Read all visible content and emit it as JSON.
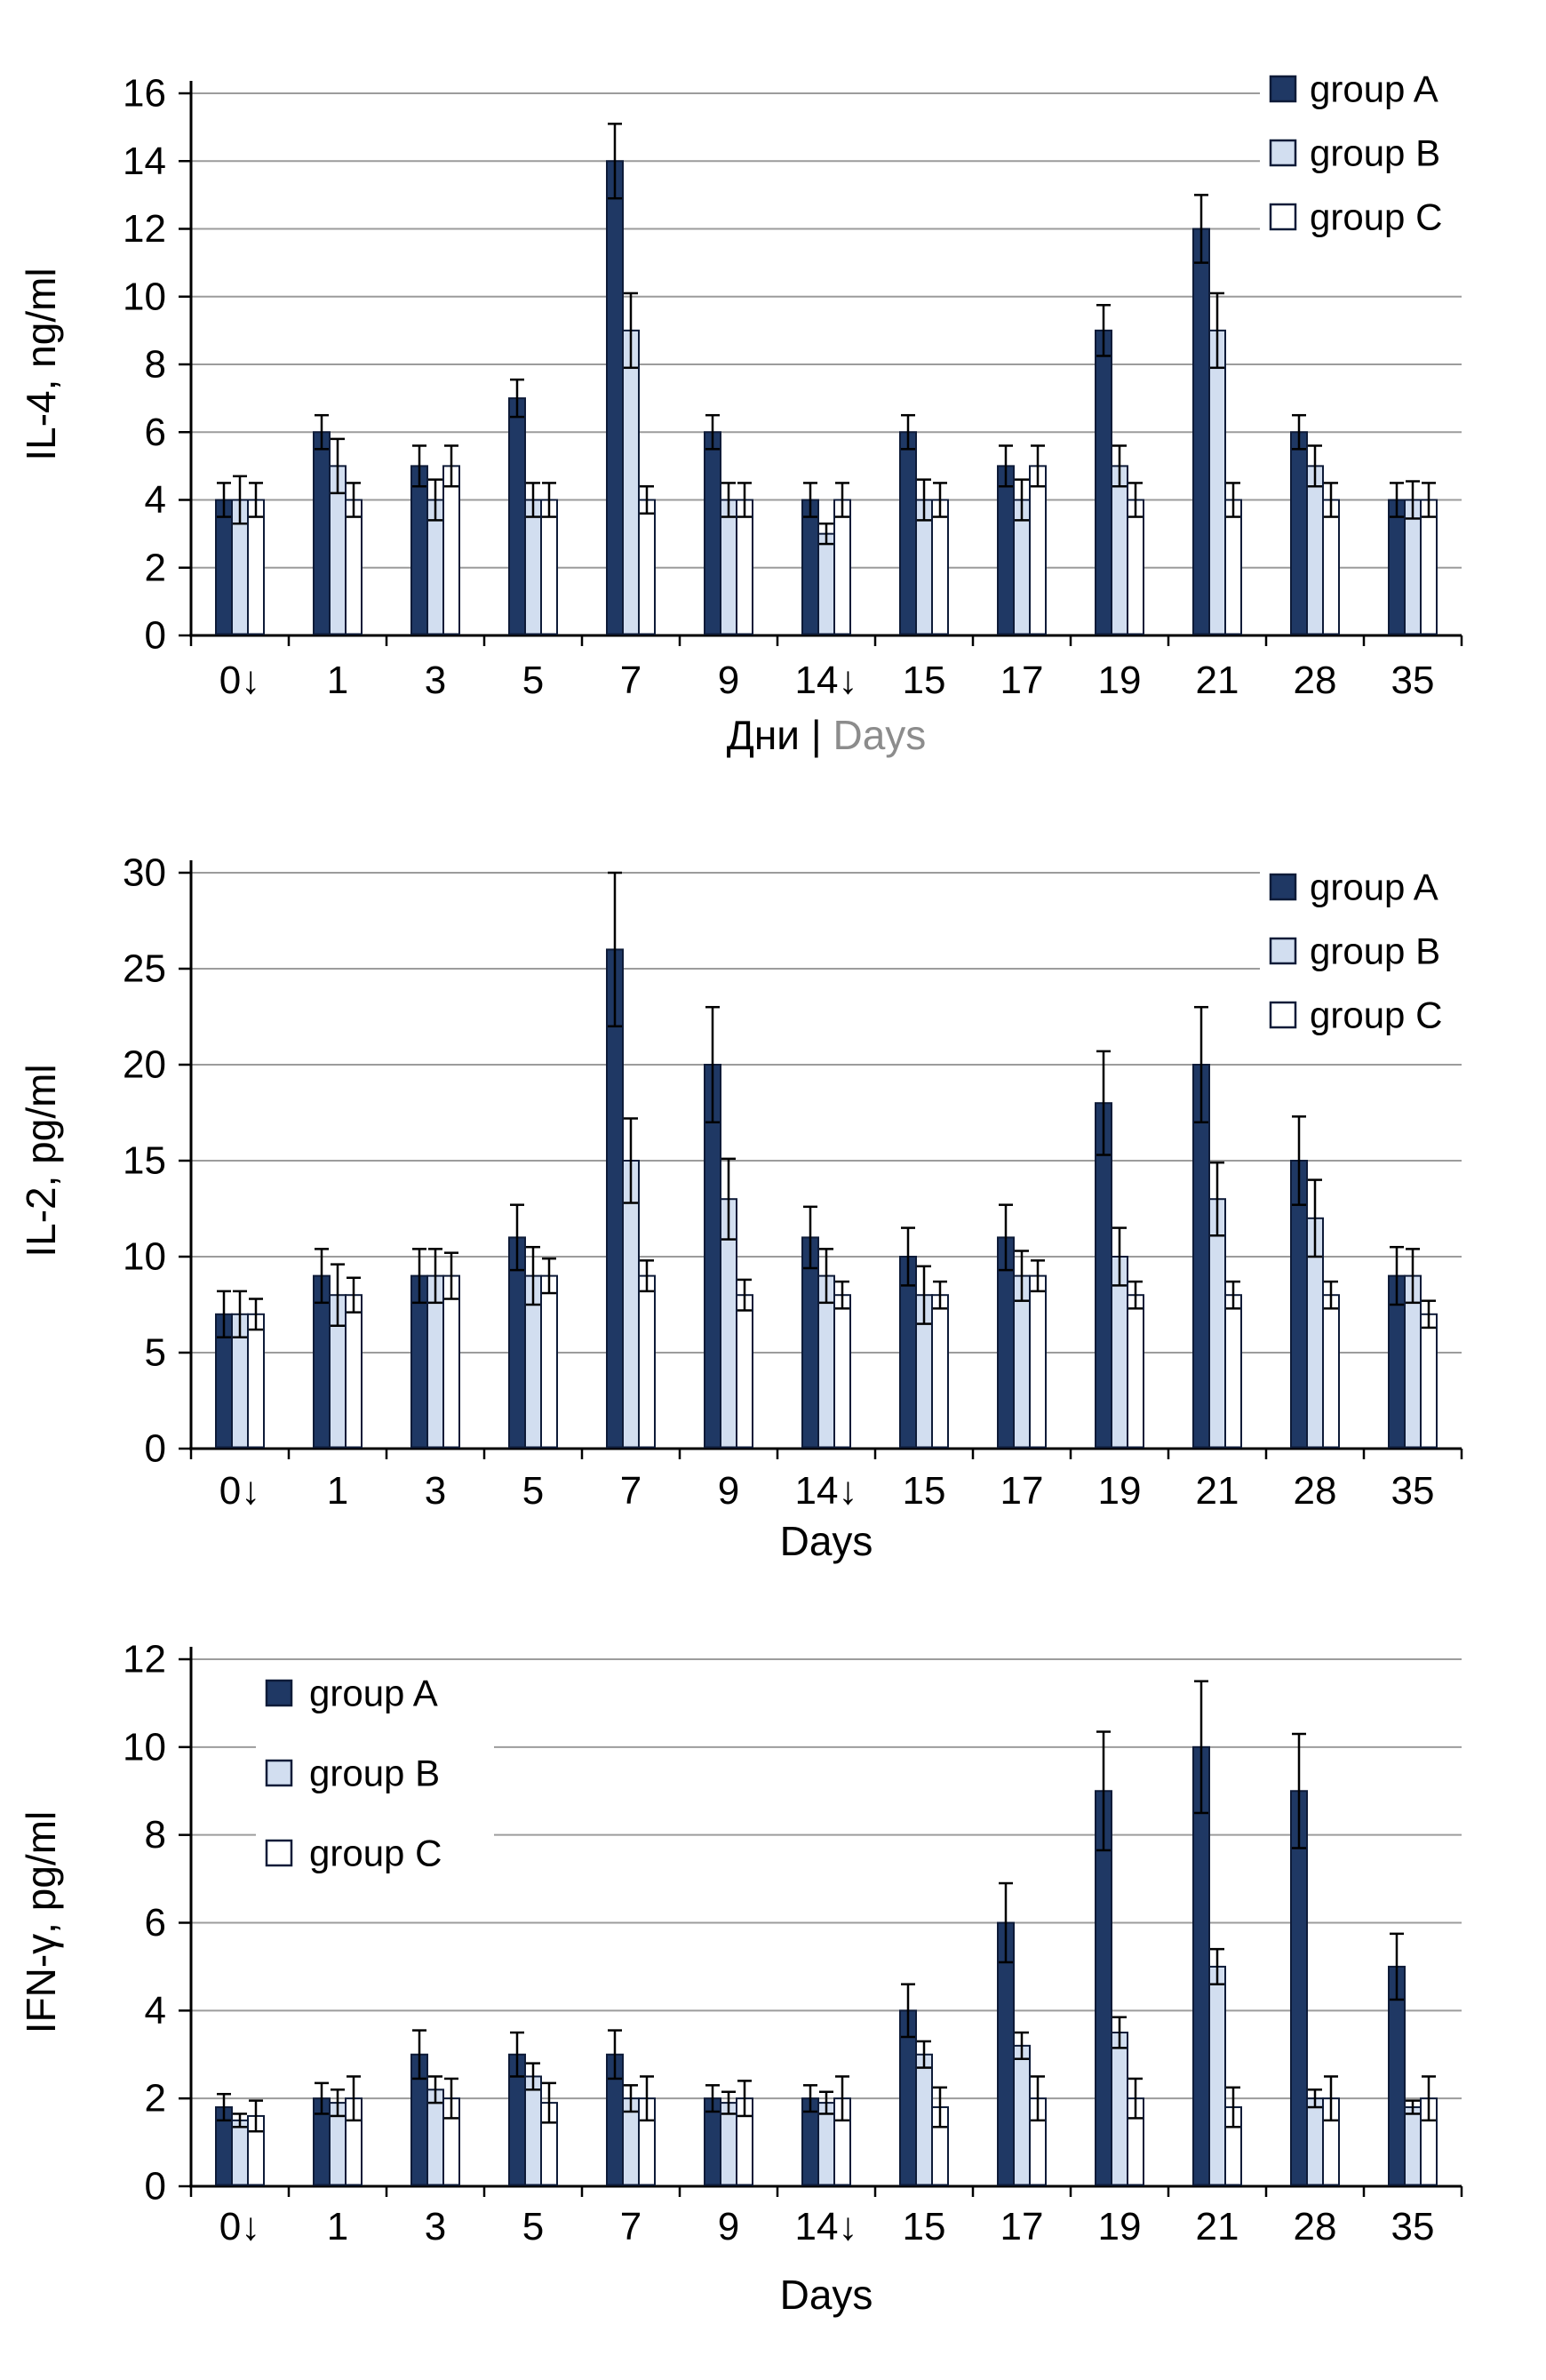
{
  "figure": {
    "background": "#ffffff",
    "legend_labels": [
      "group A",
      "group B",
      "group C"
    ]
  },
  "colors": {
    "groupA": "#1F3864",
    "groupB": "#D2DEF0",
    "groupC": "#FFFFFF",
    "bar_border": "#0E1B38",
    "grid": "#9C9C9C",
    "axis": "#000000",
    "error_bar": "#000000",
    "xtitle_secondary_gray": "#8C8C8C"
  },
  "chart_data": [
    {
      "type": "bar",
      "ylabel": "IL-4, ng/ml",
      "xlabel_parts": [
        {
          "text": "Дни | ",
          "color": "#000000"
        },
        {
          "text": "Days",
          "color": "#8C8C8C"
        }
      ],
      "ylim": [
        0,
        16
      ],
      "ytick_step": 2,
      "grid": true,
      "legend_position": "top-right",
      "categories": [
        "0↓",
        "1",
        "3",
        "5",
        "7",
        "9",
        "14↓",
        "15",
        "17",
        "19",
        "21",
        "28",
        "35"
      ],
      "series": [
        {
          "name": "group A",
          "color_key": "groupA",
          "values": [
            4,
            6,
            5,
            7,
            14,
            6,
            4,
            6,
            5,
            9,
            12,
            6,
            4
          ],
          "errors": [
            0.5,
            0.5,
            0.6,
            0.55,
            1.1,
            0.5,
            0.5,
            0.5,
            0.6,
            0.75,
            1.0,
            0.5,
            0.5
          ]
        },
        {
          "name": "group B",
          "color_key": "groupB",
          "values": [
            4,
            5,
            4,
            4,
            9,
            4,
            3,
            4,
            4,
            5,
            9,
            5,
            4
          ],
          "errors": [
            0.7,
            0.8,
            0.6,
            0.5,
            1.1,
            0.5,
            0.3,
            0.6,
            0.6,
            0.6,
            1.1,
            0.6,
            0.55
          ]
        },
        {
          "name": "group C",
          "color_key": "groupC",
          "values": [
            4,
            4,
            5,
            4,
            4,
            4,
            4,
            4,
            5,
            4,
            4,
            4,
            4
          ],
          "errors": [
            0.5,
            0.5,
            0.6,
            0.5,
            0.4,
            0.5,
            0.5,
            0.5,
            0.6,
            0.5,
            0.5,
            0.5,
            0.5
          ]
        }
      ]
    },
    {
      "type": "bar",
      "ylabel": "IL-2, pg/ml",
      "xlabel_parts": [
        {
          "text": "Days",
          "color": "#000000"
        }
      ],
      "ylim": [
        0,
        30
      ],
      "ytick_step": 5,
      "grid": true,
      "legend_position": "top-right",
      "categories": [
        "0↓",
        "1",
        "3",
        "5",
        "7",
        "9",
        "14↓",
        "15",
        "17",
        "19",
        "21",
        "28",
        "35"
      ],
      "series": [
        {
          "name": "group A",
          "color_key": "groupA",
          "values": [
            7,
            9,
            9,
            11,
            26,
            20,
            11,
            10,
            11,
            18,
            20,
            15,
            9
          ],
          "errors": [
            1.2,
            1.4,
            1.4,
            1.7,
            4.0,
            3.0,
            1.6,
            1.5,
            1.7,
            2.7,
            3.0,
            2.3,
            1.5
          ]
        },
        {
          "name": "group B",
          "color_key": "groupB",
          "values": [
            7,
            8,
            9,
            9,
            15,
            13,
            9,
            8,
            9,
            10,
            13,
            12,
            9
          ],
          "errors": [
            1.2,
            1.6,
            1.4,
            1.5,
            2.2,
            2.1,
            1.4,
            1.5,
            1.3,
            1.5,
            1.9,
            2.0,
            1.4
          ]
        },
        {
          "name": "group C",
          "color_key": "groupC",
          "values": [
            7,
            8,
            9,
            9,
            9,
            8,
            8,
            8,
            9,
            8,
            8,
            8,
            7
          ],
          "errors": [
            0.8,
            0.9,
            1.2,
            0.9,
            0.8,
            0.8,
            0.7,
            0.7,
            0.8,
            0.7,
            0.7,
            0.7,
            0.7
          ]
        }
      ]
    },
    {
      "type": "bar",
      "ylabel": "IFN-γ, pg/ml",
      "xlabel_parts": [
        {
          "text": "Days",
          "color": "#000000"
        }
      ],
      "ylim": [
        0,
        12
      ],
      "ytick_step": 2,
      "grid": true,
      "legend_position": "inside-top-left",
      "categories": [
        "0↓",
        "1",
        "3",
        "5",
        "7",
        "9",
        "14↓",
        "15",
        "17",
        "19",
        "21",
        "28",
        "35"
      ],
      "series": [
        {
          "name": "group A",
          "color_key": "groupA",
          "values": [
            1.8,
            2,
            3,
            3,
            3,
            2,
            2,
            4,
            6,
            9,
            10,
            9,
            5
          ],
          "errors": [
            0.3,
            0.35,
            0.55,
            0.5,
            0.55,
            0.3,
            0.3,
            0.6,
            0.9,
            1.35,
            1.5,
            1.3,
            0.75
          ]
        },
        {
          "name": "group B",
          "color_key": "groupB",
          "values": [
            1.5,
            1.9,
            2.2,
            2.5,
            2,
            1.9,
            1.9,
            3,
            3.2,
            3.5,
            5,
            2,
            1.8
          ],
          "errors": [
            0.15,
            0.3,
            0.3,
            0.3,
            0.3,
            0.25,
            0.25,
            0.3,
            0.3,
            0.35,
            0.4,
            0.2,
            0.15
          ]
        },
        {
          "name": "group C",
          "color_key": "groupC",
          "values": [
            1.6,
            2,
            2,
            1.9,
            2,
            2,
            2,
            1.8,
            2,
            2,
            1.8,
            2,
            2
          ],
          "errors": [
            0.35,
            0.5,
            0.45,
            0.45,
            0.5,
            0.4,
            0.5,
            0.45,
            0.5,
            0.45,
            0.45,
            0.5,
            0.5
          ]
        }
      ]
    }
  ]
}
